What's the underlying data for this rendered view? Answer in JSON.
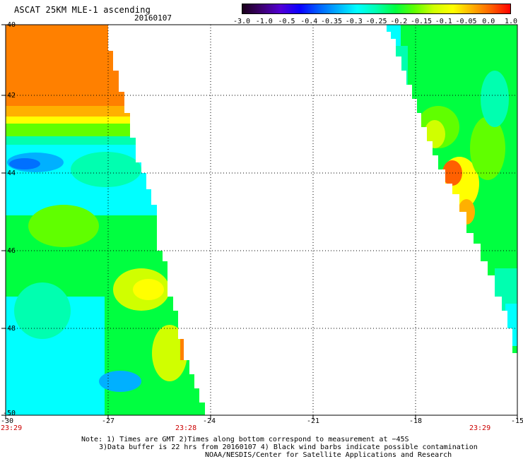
{
  "header": {
    "title": "ASCAT 25KM MLE-1 ascending",
    "date": "20160107"
  },
  "colorbar": {
    "labels": [
      "-3.0",
      "-1.0",
      "-0.5",
      "-0.4",
      "-0.35",
      "-0.3",
      "-0.25",
      "-0.2",
      "-0.15",
      "-0.1",
      "-0.05",
      "0.0",
      "1.0"
    ],
    "colors": [
      "#1a001a",
      "#3d0070",
      "#5200d6",
      "#0a00ff",
      "#0060ff",
      "#00b0ff",
      "#00ffff",
      "#00ffb0",
      "#00ff40",
      "#60ff00",
      "#d0ff00",
      "#ffff00",
      "#ffb000",
      "#ff6000",
      "#ff0000"
    ]
  },
  "map": {
    "lat_labels": [
      "-40",
      "-42",
      "-44",
      "-46",
      "-48",
      "-50"
    ],
    "lon_labels": [
      "-30",
      "-27",
      "-24",
      "-21",
      "-18",
      "-15"
    ],
    "time_labels": {
      "left": "23:29",
      "mid": "23:28",
      "right": "23:29"
    }
  },
  "notes": {
    "line1": "Note: 1) Times are GMT 2)Times along bottom correspond to measurement at −45S",
    "line2": "3)Data buffer is 22 hrs from 20160107 4) Black wind barbs indicate possible contamination",
    "line3": "NOAA/NESDIS/Center for Satellite Applications and Research"
  }
}
